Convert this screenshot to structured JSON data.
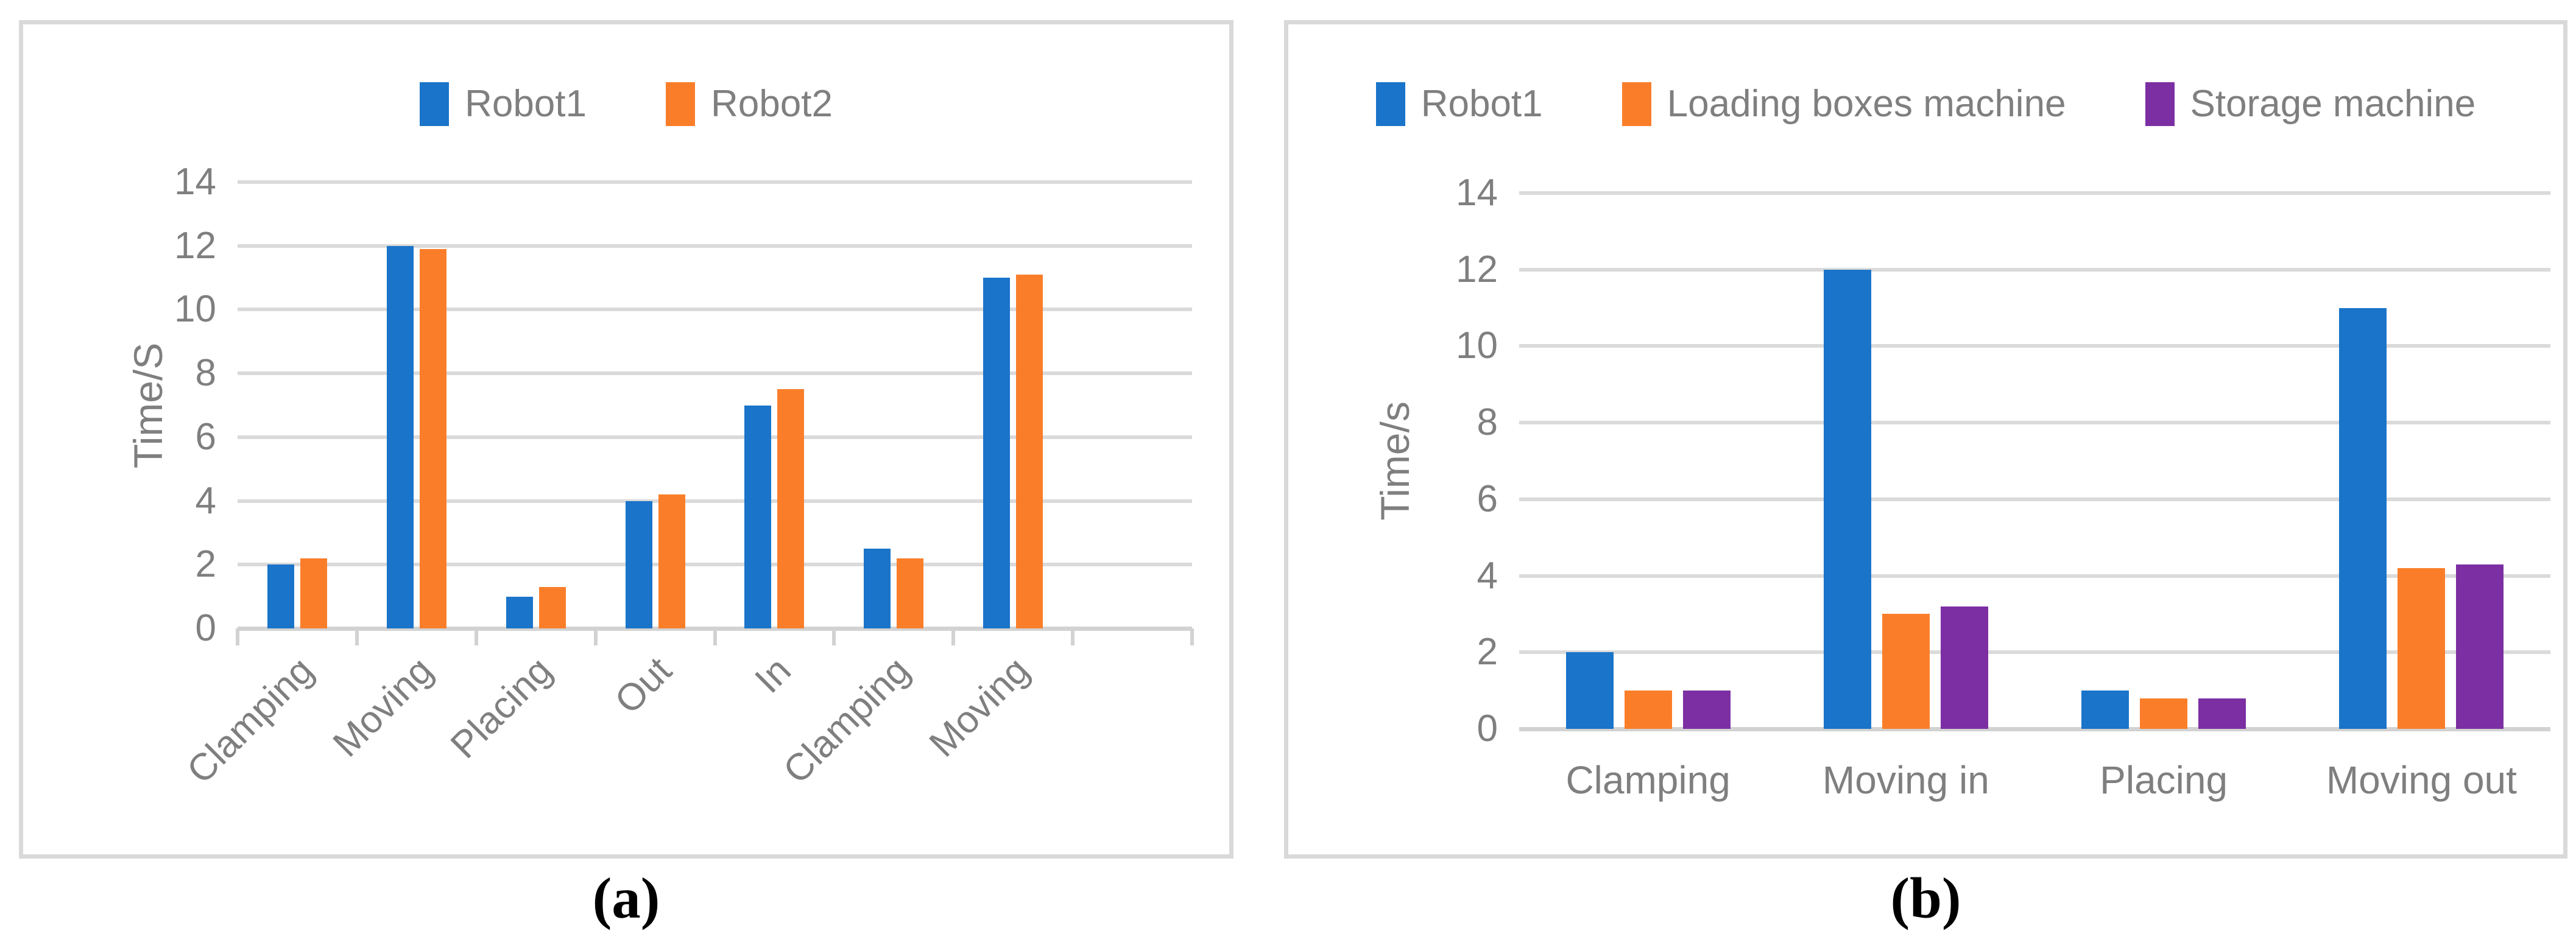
{
  "figure": {
    "caption_a": "(a)",
    "caption_b": "(b)"
  },
  "colors": {
    "robot1_blue": "#1a74c9",
    "robot2_orange": "#fa7e2a",
    "loading_orange": "#fa7e2a",
    "storage_purple": "#7c2fa3",
    "axis_text_gray": "#7f7f7f",
    "gridline_gray": "#d9d9d9",
    "panel_border_gray": "#d9d9d9",
    "caption_black": "#000000"
  },
  "chart_data": [
    {
      "id": "a",
      "type": "bar",
      "title": "",
      "xlabel": "",
      "ylabel": "Time/S",
      "categories": [
        "Clamping",
        "Moving",
        "Placing",
        "Out",
        "In",
        "Clamping",
        "Moving"
      ],
      "series": [
        {
          "name": "Robot1",
          "color": "#1a74c9",
          "values": [
            2,
            12,
            1,
            4,
            7,
            2.5,
            11
          ]
        },
        {
          "name": "Robot2",
          "color": "#fa7e2a",
          "values": [
            2.2,
            11.9,
            1.3,
            4.2,
            7.5,
            2.2,
            11.1
          ]
        }
      ],
      "ylim": [
        0,
        14
      ],
      "yticks": [
        0,
        2,
        4,
        6,
        8,
        10,
        12,
        14
      ],
      "grid": true,
      "legend_position": "top-center",
      "xlabel_rotation_deg": 45,
      "empty_trailing_slots": 1
    },
    {
      "id": "b",
      "type": "bar",
      "title": "",
      "xlabel": "",
      "ylabel": "Time/s",
      "categories": [
        "Clamping",
        "Moving in",
        "Placing",
        "Moving out"
      ],
      "series": [
        {
          "name": "Robot1",
          "color": "#1a74c9",
          "values": [
            2,
            12,
            1,
            11
          ]
        },
        {
          "name": "Loading boxes machine",
          "color": "#fa7e2a",
          "values": [
            1,
            3,
            0.8,
            4.2
          ]
        },
        {
          "name": "Storage machine",
          "color": "#7c2fa3",
          "values": [
            1,
            3.2,
            0.8,
            4.3
          ]
        }
      ],
      "ylim": [
        0,
        14
      ],
      "yticks": [
        0,
        2,
        4,
        6,
        8,
        10,
        12,
        14
      ],
      "grid": true,
      "legend_position": "top-center",
      "xlabel_rotation_deg": 0,
      "empty_trailing_slots": 0
    }
  ]
}
